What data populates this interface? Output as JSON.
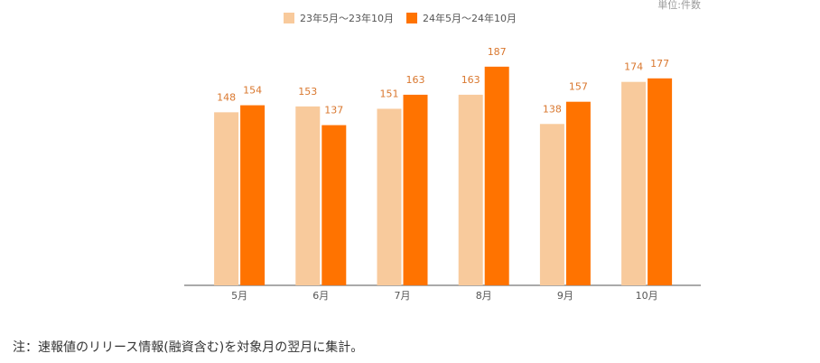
{
  "chart_data": {
    "type": "bar",
    "unit_label": "単位:件数",
    "categories": [
      "5月",
      "6月",
      "7月",
      "8月",
      "9月",
      "10月"
    ],
    "series": [
      {
        "name": "23年5月～23年10月",
        "color": "#f8ca9c",
        "values": [
          148,
          153,
          151,
          163,
          138,
          174
        ]
      },
      {
        "name": "24年5月～24年10月",
        "color": "#ff7300",
        "values": [
          154,
          137,
          163,
          187,
          157,
          177
        ]
      }
    ],
    "ylim": [
      0,
      200
    ],
    "legend": "top"
  },
  "note": "注：速報値のリリース情報(融資含む)を対象月の翌月に集計。"
}
